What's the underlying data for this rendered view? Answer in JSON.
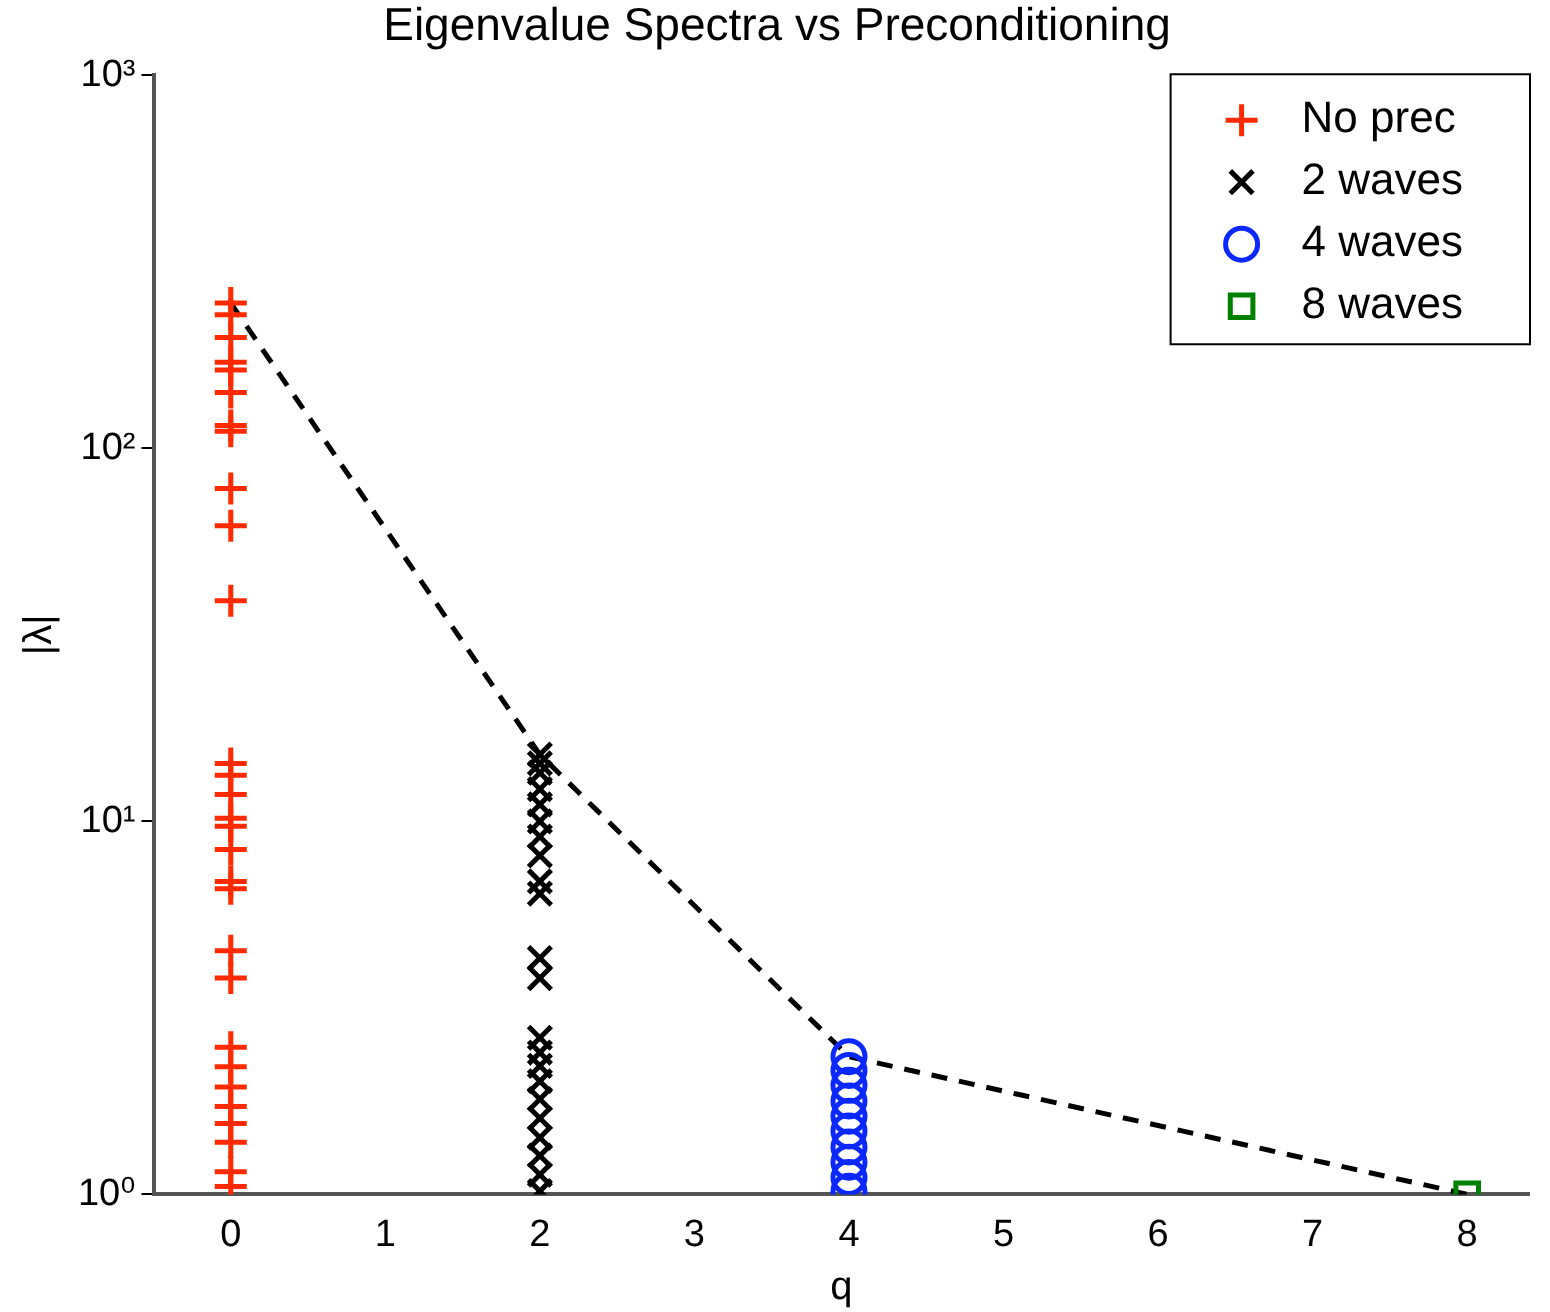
{
  "chart_data": {
    "type": "scatter",
    "title": "Eigenvalue Spectra vs Preconditioning",
    "xlabel": "q",
    "ylabel": "|λ|",
    "xlim": [
      -0.5,
      8.4
    ],
    "xticks": [
      0,
      1,
      2,
      3,
      4,
      5,
      6,
      7,
      8
    ],
    "ylim": [
      1,
      1000
    ],
    "yticks": [
      {
        "value": 1,
        "label": "10⁰"
      },
      {
        "value": 10,
        "label": "10¹"
      },
      {
        "value": 100,
        "label": "10²"
      },
      {
        "value": 1000,
        "label": "10³"
      }
    ],
    "log": "y",
    "grid": false,
    "legend": "top right",
    "series": [
      {
        "name": "No prec",
        "color": "#ff2a00",
        "marker": "cross",
        "x": [
          0,
          0,
          0,
          0,
          0,
          0,
          0,
          0,
          0,
          0,
          0,
          0,
          0,
          0,
          0,
          0,
          0,
          0,
          0,
          0,
          0,
          0,
          0,
          0,
          0,
          0,
          0,
          0,
          0
        ],
        "values": [
          245,
          228,
          198,
          170,
          162,
          141,
          115,
          111,
          78,
          62,
          39,
          14.3,
          13.3,
          11.8,
          10.2,
          9.7,
          8.4,
          6.9,
          6.6,
          4.5,
          3.8,
          2.48,
          2.2,
          1.94,
          1.72,
          1.55,
          1.38,
          1.15,
          1.05
        ]
      },
      {
        "name": "2 waves",
        "color": "#000000",
        "marker": "x",
        "x": [
          2,
          2,
          2,
          2,
          2,
          2,
          2,
          2,
          2,
          2,
          2,
          2,
          2,
          2,
          2,
          2,
          2,
          2,
          2,
          2,
          2,
          2
        ],
        "values": [
          15.1,
          14.3,
          13.5,
          12.2,
          11.1,
          10.0,
          9.1,
          8.1,
          6.9,
          6.4,
          4.3,
          3.8,
          2.63,
          2.4,
          2.21,
          2.01,
          1.8,
          1.6,
          1.42,
          1.27,
          1.13,
          1.02
        ]
      },
      {
        "name": "4 waves",
        "color": "#0a28ff",
        "marker": "circle",
        "x": [
          4,
          4,
          4,
          4,
          4,
          4,
          4,
          4,
          4,
          4
        ],
        "values": [
          2.34,
          2.15,
          1.96,
          1.78,
          1.62,
          1.48,
          1.34,
          1.22,
          1.11,
          1.02
        ]
      },
      {
        "name": "8 waves",
        "color": "#008000",
        "marker": "square",
        "x": [
          8
        ],
        "values": [
          1
        ]
      },
      {
        "type": "line",
        "color": "#000000",
        "line_style": "dashed",
        "marker": "none",
        "x": [
          0,
          2,
          4,
          8
        ],
        "values": [
          245,
          15.1,
          2.34,
          1
        ]
      }
    ]
  }
}
